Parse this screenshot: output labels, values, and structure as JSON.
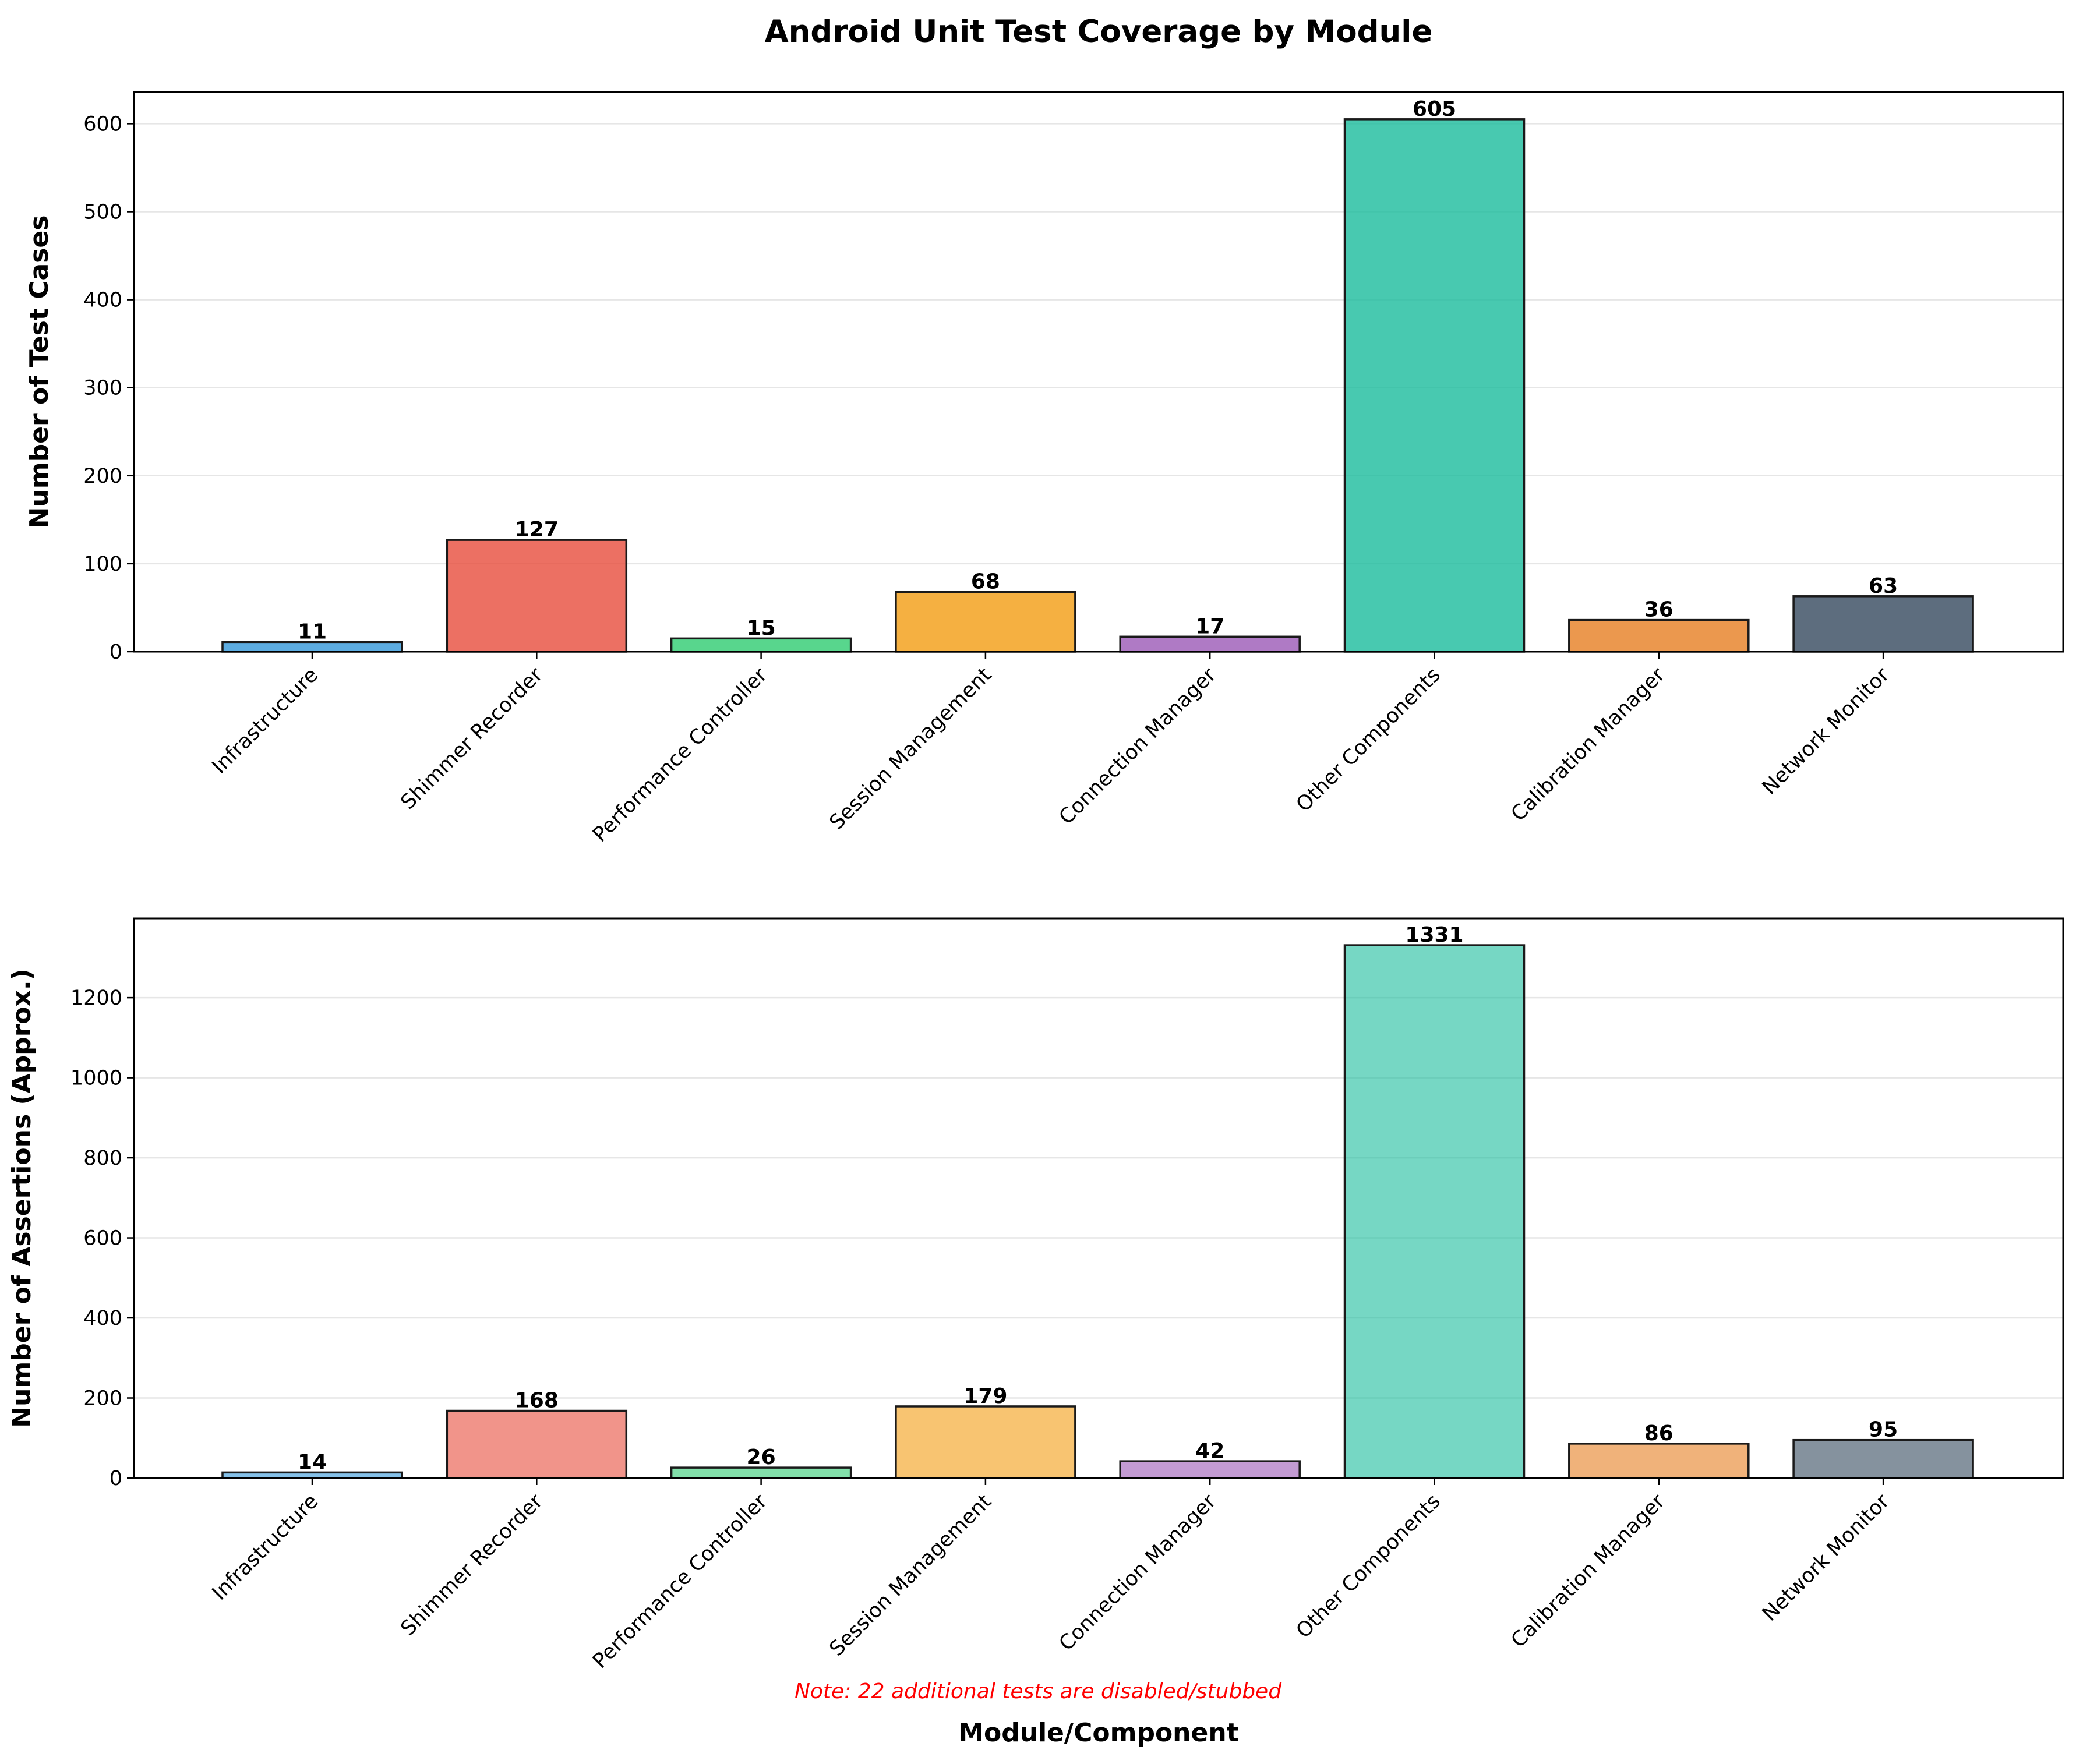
{
  "chart_data": {
    "title": "Android Unit Test Coverage by Module",
    "xlabel": "Module/Component",
    "note": "Note: 22 additional tests are disabled/stubbed",
    "categories": [
      "Infrastructure",
      "Shimmer Recorder",
      "Performance Controller",
      "Session Management",
      "Connection Manager",
      "Other Components",
      "Calibration Manager",
      "Network Monitor"
    ],
    "colors": [
      "#3498db",
      "#e74c3c",
      "#2ecc71",
      "#f39c12",
      "#9b59b6",
      "#1abc9c",
      "#e67e22",
      "#34495e"
    ],
    "panels": [
      {
        "type": "bar",
        "ylabel": "Number of Test Cases",
        "values": [
          11,
          127,
          15,
          68,
          17,
          605,
          36,
          63
        ],
        "ylim": [
          0,
          636
        ],
        "yticks": [
          0,
          100,
          200,
          300,
          400,
          500,
          600
        ],
        "opacity": 0.8,
        "grid": true
      },
      {
        "type": "bar",
        "ylabel": "Number of Assertions (Approx.)",
        "values": [
          14,
          168,
          26,
          179,
          42,
          1331,
          86,
          95
        ],
        "ylim": [
          0,
          1398
        ],
        "yticks": [
          0,
          200,
          400,
          600,
          800,
          1000,
          1200
        ],
        "opacity": 0.6,
        "grid": true
      }
    ]
  }
}
